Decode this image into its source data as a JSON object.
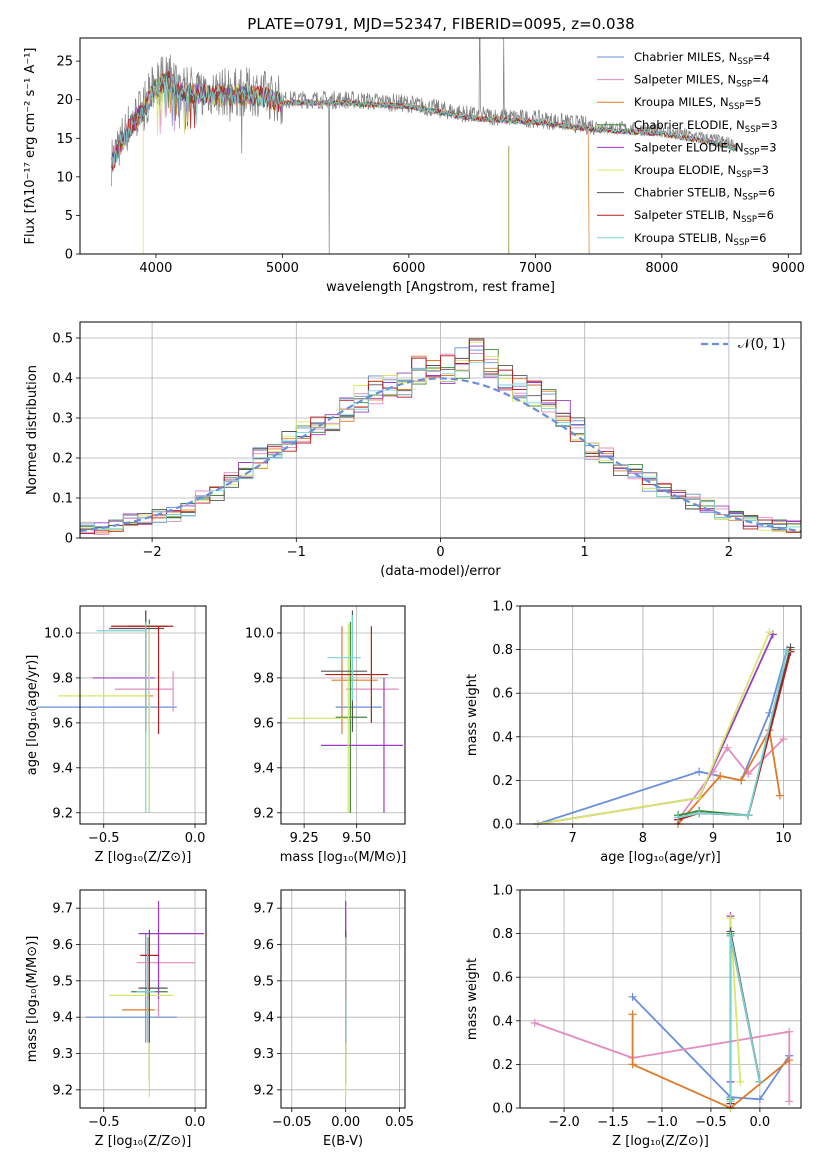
{
  "figure_title": "PLATE=0791, MJD=52347, FIBERID=0095, z=0.038",
  "models": [
    {
      "name": "Chabrier MILES",
      "nssp": "4",
      "color": "#6a8fdb"
    },
    {
      "name": "Salpeter MILES",
      "nssp": "4",
      "color": "#e38cbf"
    },
    {
      "name": "Kroupa MILES",
      "nssp": "5",
      "color": "#e07b29"
    },
    {
      "name": "Chabrier ELODIE",
      "nssp": "3",
      "color": "#3c8a3c"
    },
    {
      "name": "Salpeter ELODIE",
      "nssp": "3",
      "color": "#9a3cc4"
    },
    {
      "name": "Kroupa ELODIE",
      "nssp": "3",
      "color": "#d8e66a"
    },
    {
      "name": "Chabrier STELIB",
      "nssp": "6",
      "color": "#555555"
    },
    {
      "name": "Salpeter STELIB",
      "nssp": "6",
      "color": "#b41e1e"
    },
    {
      "name": "Kroupa STELIB",
      "nssp": "6",
      "color": "#7ad3d3"
    }
  ],
  "chart_data": [
    {
      "type": "line",
      "xlabel": "wavelength [Angstrom, rest frame]",
      "ylabel": "Flux [fλ10⁻¹⁷ erg cm⁻² s⁻¹ A⁻¹]",
      "xlim": [
        3400,
        9100
      ],
      "ylim": [
        0,
        28
      ],
      "xticks": [
        4000,
        5000,
        6000,
        7000,
        8000,
        9000
      ],
      "yticks": [
        0,
        5,
        10,
        15,
        20,
        25
      ],
      "series_note": "observed spectrum (grey) with 9 model fits",
      "continuum": {
        "x": [
          3650,
          3700,
          3800,
          3900,
          4000,
          4100,
          4200,
          4400,
          4600,
          4800,
          5000,
          5500,
          6000,
          6500,
          7000,
          7500,
          8000,
          8500,
          8600
        ],
        "y": [
          12,
          14,
          17,
          19,
          22,
          23,
          21.5,
          21,
          21,
          21,
          20,
          20,
          19.5,
          18,
          17.5,
          16.5,
          16,
          14.5,
          14
        ]
      },
      "grid": false,
      "legend_position": "top-right"
    },
    {
      "type": "line",
      "xlabel": "(data-model)/error",
      "ylabel": "Normed distribution",
      "xlim": [
        -2.5,
        2.5
      ],
      "ylim": [
        0,
        0.54
      ],
      "xticks": [
        -2,
        -1,
        0,
        1,
        2
      ],
      "xtick_labels": [
        "−2",
        "−1",
        "0",
        "1",
        "2"
      ],
      "yticks": [
        0.0,
        0.1,
        0.2,
        0.3,
        0.4,
        0.5
      ],
      "legend": "𝒩(0, 1)",
      "bin_edges": [
        -2.5,
        -2.4,
        -2.3,
        -2.2,
        -2.1,
        -2.0,
        -1.9,
        -1.8,
        -1.7,
        -1.6,
        -1.5,
        -1.4,
        -1.3,
        -1.2,
        -1.1,
        -1.0,
        -0.9,
        -0.8,
        -0.7,
        -0.6,
        -0.5,
        -0.4,
        -0.3,
        -0.2,
        -0.1,
        0.0,
        0.1,
        0.2,
        0.3,
        0.4,
        0.5,
        0.6,
        0.7,
        0.8,
        0.9,
        1.0,
        1.1,
        1.2,
        1.3,
        1.4,
        1.5,
        1.6,
        1.7,
        1.8,
        1.9,
        2.0,
        2.1,
        2.2,
        2.3,
        2.4,
        2.5
      ],
      "histogram_base": [
        0.025,
        0.025,
        0.03,
        0.045,
        0.05,
        0.055,
        0.06,
        0.07,
        0.1,
        0.11,
        0.14,
        0.17,
        0.2,
        0.22,
        0.24,
        0.26,
        0.28,
        0.3,
        0.32,
        0.35,
        0.37,
        0.38,
        0.39,
        0.42,
        0.44,
        0.42,
        0.44,
        0.46,
        0.44,
        0.4,
        0.38,
        0.36,
        0.34,
        0.31,
        0.27,
        0.22,
        0.2,
        0.18,
        0.16,
        0.14,
        0.12,
        0.11,
        0.09,
        0.08,
        0.065,
        0.05,
        0.04,
        0.035,
        0.03,
        0.028
      ],
      "histogram_spread": 0.03,
      "grid": true,
      "legend_position": "top-right"
    },
    {
      "type": "scatter",
      "xlabel": "Z [log₁₀(Z/Z⊙)]",
      "ylabel": "age  [log₁₀(age/yr)]",
      "xlim": [
        -0.63,
        0.06
      ],
      "ylim": [
        9.15,
        10.12
      ],
      "xticks": [
        -0.5,
        0.0
      ],
      "xtick_labels": [
        "−0.5",
        "0.0"
      ],
      "yticks": [
        9.2,
        9.4,
        9.6,
        9.8,
        10.0
      ],
      "ytick_labels": [
        "9.2",
        "9.4",
        "9.6",
        "9.8",
        "10.0"
      ],
      "points": [
        {
          "x": -0.27,
          "xerr": [
            0.6,
            0.17
          ],
          "y": 9.67,
          "yerr": [
            0.03,
            0.43
          ]
        },
        {
          "x": -0.12,
          "xerr": [
            0.32,
            0.0
          ],
          "y": 9.75,
          "yerr": [
            0.1,
            0.08
          ]
        },
        {
          "x": -0.25,
          "xerr": [
            0.02,
            0.02
          ],
          "y": 9.72,
          "yerr": [
            9.56,
            10.02
          ]
        },
        {
          "x": -0.25,
          "xerr": [
            0.12,
            0.1
          ],
          "y": 10.03,
          "yerr": [
            9.2,
            10.06
          ]
        },
        {
          "x": -0.25,
          "xerr": [
            0.31,
            0.03
          ],
          "y": 9.8,
          "yerr": [
            9.72,
            9.88
          ]
        },
        {
          "x": -0.25,
          "xerr": [
            0.5,
            0.0
          ],
          "y": 9.72,
          "yerr": [
            9.2,
            10.04
          ]
        },
        {
          "x": -0.27,
          "xerr": [
            0.2,
            0.1
          ],
          "y": 10.02,
          "yerr": [
            9.56,
            10.1
          ]
        },
        {
          "x": -0.2,
          "xerr": [
            0.26,
            0.08
          ],
          "y": 10.03,
          "yerr": [
            9.55,
            10.03
          ]
        },
        {
          "x": -0.27,
          "xerr": [
            0.27,
            0.0
          ],
          "y": 10.01,
          "yerr": [
            9.2,
            10.05
          ]
        }
      ],
      "grid": true
    },
    {
      "type": "scatter",
      "xlabel": "mass [log₁₀(M/M⊙)]",
      "ylabel": "",
      "xlim": [
        9.14,
        9.73
      ],
      "ylim": [
        9.15,
        10.12
      ],
      "xticks": [
        9.25,
        9.5
      ],
      "xtick_labels": [
        "9.25",
        "9.50"
      ],
      "yticks": [
        9.2,
        9.4,
        9.6,
        9.8,
        10.0
      ],
      "ytick_labels": [
        "9.2",
        "9.4",
        "9.6",
        "9.8",
        "10.0"
      ],
      "points": [
        {
          "x": 9.5,
          "xlo": 9.4,
          "xhi": 9.62,
          "ylo": 9.67,
          "yhi": 9.67
        },
        {
          "x": 9.55,
          "xlo": 9.45,
          "xhi": 9.7,
          "ylo": 9.75,
          "yhi": 9.75
        },
        {
          "x": 9.43,
          "xlo": 9.38,
          "xhi": 9.6,
          "ylo": 9.55,
          "yhi": 10.03
        },
        {
          "x": 9.47,
          "xlo": 9.4,
          "xhi": 9.55,
          "ylo": 9.2,
          "yhi": 10.05
        },
        {
          "x": 9.63,
          "xlo": 9.33,
          "xhi": 9.72,
          "ylo": 9.2,
          "yhi": 9.8
        },
        {
          "x": 9.46,
          "xlo": 9.17,
          "xhi": 9.47,
          "ylo": 9.2,
          "yhi": 10.04
        },
        {
          "x": 9.48,
          "xlo": 9.33,
          "xhi": 9.55,
          "ylo": 9.56,
          "yhi": 10.1
        },
        {
          "x": 9.57,
          "xlo": 9.35,
          "xhi": 9.65,
          "ylo": 9.6,
          "yhi": 10.03
        },
        {
          "x": 9.48,
          "xlo": 9.36,
          "xhi": 9.52,
          "ylo": 9.7,
          "yhi": 10.08
        }
      ],
      "grid": true
    },
    {
      "type": "line",
      "xlabel": "age  [log₁₀(age/yr)]",
      "ylabel": "mass weight",
      "xlim": [
        6.25,
        10.25
      ],
      "ylim": [
        0,
        1.0
      ],
      "xticks": [
        7,
        8,
        9,
        10
      ],
      "xtick_labels": [
        "7",
        "8",
        "9",
        "10"
      ],
      "yticks": [
        0.0,
        0.2,
        0.4,
        0.6,
        0.8,
        1.0
      ],
      "ytick_labels": [
        "0.0",
        "0.2",
        "0.4",
        "0.6",
        "0.8",
        "1.0"
      ],
      "series": [
        {
          "x": [
            6.5,
            8.8,
            9.4,
            9.8,
            10.05
          ],
          "y": [
            0.0,
            0.24,
            0.2,
            0.51,
            0.8
          ]
        },
        {
          "x": [
            8.5,
            9.0,
            9.2,
            9.5,
            10.0
          ],
          "y": [
            0.02,
            0.24,
            0.35,
            0.23,
            0.39
          ]
        },
        {
          "x": [
            8.5,
            9.1,
            9.4,
            9.8,
            9.95
          ],
          "y": [
            0.0,
            0.22,
            0.2,
            0.43,
            0.13
          ]
        },
        {
          "x": [
            8.5,
            8.8,
            9.5,
            10.1
          ],
          "y": [
            0.04,
            0.06,
            0.04,
            0.8
          ]
        },
        {
          "x": [
            6.5,
            8.8,
            9.85
          ],
          "y": [
            0.0,
            0.12,
            0.87
          ]
        },
        {
          "x": [
            6.5,
            8.8,
            9.8
          ],
          "y": [
            0.0,
            0.12,
            0.88
          ]
        },
        {
          "x": [
            8.5,
            8.8,
            9.5,
            10.1
          ],
          "y": [
            0.03,
            0.05,
            0.04,
            0.81
          ]
        },
        {
          "x": [
            8.5,
            8.8,
            9.5,
            10.1
          ],
          "y": [
            0.02,
            0.05,
            0.04,
            0.79
          ]
        },
        {
          "x": [
            8.5,
            8.8,
            9.5,
            10.05
          ],
          "y": [
            0.03,
            0.05,
            0.04,
            0.79
          ]
        }
      ],
      "grid": true
    },
    {
      "type": "scatter",
      "xlabel": "Z [log₁₀(Z/Z⊙)]",
      "ylabel": "mass [log₁₀(M/M⊙)]",
      "xlim": [
        -0.63,
        0.06
      ],
      "ylim": [
        9.15,
        9.75
      ],
      "xticks": [
        -0.5,
        0.0
      ],
      "xtick_labels": [
        "−0.5",
        "0.0"
      ],
      "yticks": [
        9.2,
        9.3,
        9.4,
        9.5,
        9.6,
        9.7
      ],
      "ytick_labels": [
        "9.2",
        "9.3",
        "9.4",
        "9.5",
        "9.6",
        "9.7"
      ],
      "points": [
        {
          "x": -0.27,
          "xlo": -0.6,
          "xhi": -0.1,
          "y": 9.4,
          "ylo": 9.33,
          "yhi": 9.63
        },
        {
          "x": -0.2,
          "xlo": -0.32,
          "xhi": 0.0,
          "y": 9.55,
          "ylo": 9.4,
          "yhi": 9.7
        },
        {
          "x": -0.25,
          "xlo": -0.4,
          "xhi": -0.22,
          "y": 9.42,
          "ylo": 9.3,
          "yhi": 9.62
        },
        {
          "x": -0.25,
          "xlo": -0.35,
          "xhi": -0.15,
          "y": 9.47,
          "ylo": 9.22,
          "yhi": 9.62
        },
        {
          "x": -0.2,
          "xlo": -0.31,
          "xhi": 0.05,
          "y": 9.63,
          "ylo": 9.45,
          "yhi": 9.72
        },
        {
          "x": -0.25,
          "xlo": -0.47,
          "xhi": -0.12,
          "y": 9.46,
          "ylo": 9.18,
          "yhi": 9.54
        },
        {
          "x": -0.25,
          "xlo": -0.31,
          "xhi": -0.15,
          "y": 9.48,
          "ylo": 9.33,
          "yhi": 9.64
        },
        {
          "x": -0.25,
          "xlo": -0.3,
          "xhi": -0.2,
          "y": 9.57,
          "ylo": 9.45,
          "yhi": 9.62
        },
        {
          "x": -0.26,
          "xlo": -0.32,
          "xhi": -0.22,
          "y": 9.47,
          "ylo": 9.33,
          "yhi": 9.62
        }
      ],
      "grid": true
    },
    {
      "type": "scatter",
      "xlabel": "E(B-V)",
      "ylabel": "",
      "xlim": [
        -0.06,
        0.055
      ],
      "ylim": [
        9.15,
        9.75
      ],
      "xticks": [
        -0.05,
        0.0,
        0.05
      ],
      "xtick_labels": [
        "−0.05",
        "0.00",
        "0.05"
      ],
      "yticks": [
        9.2,
        9.3,
        9.4,
        9.5,
        9.6,
        9.7
      ],
      "ytick_labels": [
        "9.2",
        "9.3",
        "9.4",
        "9.5",
        "9.6",
        "9.7"
      ],
      "points": [
        {
          "x": 0.0,
          "ylo": 9.33,
          "yhi": 9.63
        },
        {
          "x": 0.0,
          "ylo": 9.4,
          "yhi": 9.7
        },
        {
          "x": 0.0,
          "ylo": 9.3,
          "yhi": 9.62
        },
        {
          "x": 0.0,
          "ylo": 9.22,
          "yhi": 9.62
        },
        {
          "x": 0.0,
          "ylo": 9.45,
          "yhi": 9.72
        },
        {
          "x": 0.0,
          "ylo": 9.18,
          "yhi": 9.54
        },
        {
          "x": 0.0,
          "ylo": 9.33,
          "yhi": 9.64
        },
        {
          "x": 0.0,
          "ylo": 9.45,
          "yhi": 9.62
        },
        {
          "x": 0.0,
          "ylo": 9.33,
          "yhi": 9.62
        }
      ],
      "grid": true
    },
    {
      "type": "line",
      "xlabel": "Z [log₁₀(Z/Z⊙)]",
      "ylabel": "mass weight",
      "xlim": [
        -2.45,
        0.42
      ],
      "ylim": [
        0,
        1.0
      ],
      "xticks": [
        -2.0,
        -1.5,
        -1.0,
        -0.5,
        0.0
      ],
      "xtick_labels": [
        "−2.0",
        "−1.5",
        "−1.0",
        "−0.5",
        "0.0"
      ],
      "yticks": [
        0.0,
        0.2,
        0.4,
        0.6,
        0.8,
        1.0
      ],
      "ytick_labels": [
        "0.0",
        "0.2",
        "0.4",
        "0.6",
        "0.8",
        "1.0"
      ],
      "series": [
        {
          "x": [
            -1.3,
            -0.3,
            0.0,
            0.3,
            0.3
          ],
          "y": [
            0.51,
            0.05,
            0.04,
            0.24,
            0.24
          ]
        },
        {
          "x": [
            -2.3,
            -1.3,
            0.3,
            0.3
          ],
          "y": [
            0.39,
            0.23,
            0.35,
            0.03
          ]
        },
        {
          "x": [
            -1.3,
            -1.3,
            -0.3,
            0.3
          ],
          "y": [
            0.43,
            0.2,
            0.0,
            0.22
          ]
        },
        {
          "x": [
            -0.3,
            -0.3,
            0.0
          ],
          "y": [
            0.04,
            0.8,
            0.12
          ]
        },
        {
          "x": [
            -0.3,
            -0.3,
            -0.3
          ],
          "y": [
            0.0,
            0.88,
            0.12
          ]
        },
        {
          "x": [
            -0.3,
            -0.3,
            -0.2
          ],
          "y": [
            0.0,
            0.87,
            0.12
          ]
        },
        {
          "x": [
            -0.3,
            -0.3,
            0.0
          ],
          "y": [
            0.03,
            0.81,
            0.12
          ]
        },
        {
          "x": [
            -0.3,
            -0.3,
            0.0
          ],
          "y": [
            0.02,
            0.79,
            0.12
          ]
        },
        {
          "x": [
            -0.3,
            -0.3,
            0.0
          ],
          "y": [
            0.03,
            0.79,
            0.12
          ]
        }
      ],
      "grid": true
    }
  ]
}
